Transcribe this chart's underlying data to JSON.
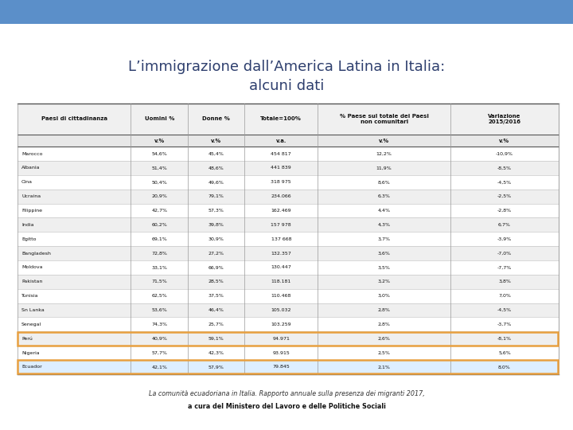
{
  "title_line1": "L’immigrazione dall’America Latina in Italia:",
  "title_line2": "alcuni dati",
  "title_color": "#2e3f6e",
  "col_headers": [
    "Paesi di cittadinanza",
    "Uomini %",
    "Donne %",
    "Totale=100%",
    "% Paese sul totale dei Paesi\nnon comunitari",
    "Variazione\n2015/2016"
  ],
  "col_subheaders": [
    "",
    "v.%",
    "v.%",
    "v.a.",
    "v.%",
    "v.%"
  ],
  "rows": [
    [
      "Marocco",
      "54,6%",
      "45,4%",
      "454 817",
      "12,2%",
      "-10,9%",
      false,
      false
    ],
    [
      "Albania",
      "51,4%",
      "48,6%",
      "441 839",
      "11,9%",
      "-8,5%",
      false,
      false
    ],
    [
      "Cina",
      "50,4%",
      "49,6%",
      "318 975",
      "8,6%",
      "-4,5%",
      false,
      false
    ],
    [
      "Ucraina",
      "20,9%",
      "79,1%",
      "234.066",
      "6,3%",
      "-2,5%",
      false,
      false
    ],
    [
      "Filippine",
      "42,7%",
      "57,3%",
      "162.469",
      "4,4%",
      "-2,8%",
      false,
      false
    ],
    [
      "India",
      "60,2%",
      "39,8%",
      "157 978",
      "4,3%",
      "6,7%",
      false,
      false
    ],
    [
      "Egitto",
      "69,1%",
      "30,9%",
      "137 668",
      "3,7%",
      "-3,9%",
      false,
      false
    ],
    [
      "Bangladesh",
      "72,8%",
      "27,2%",
      "132.357",
      "3,6%",
      "-7,0%",
      false,
      false
    ],
    [
      "Moldova",
      "33,1%",
      "66,9%",
      "130.447",
      "3,5%",
      "-7,7%",
      false,
      false
    ],
    [
      "Pakistan",
      "71,5%",
      "28,5%",
      "118.181",
      "3,2%",
      "3,8%",
      false,
      false
    ],
    [
      "Tunisia",
      "62,5%",
      "37,5%",
      "110.468",
      "3,0%",
      "7,0%",
      false,
      false
    ],
    [
      "Sn Lanka",
      "53,6%",
      "46,4%",
      "105.032",
      "2,8%",
      "-4,5%",
      false,
      false
    ],
    [
      "Senegal",
      "74,3%",
      "25,7%",
      "103.259",
      "2,8%",
      "-3,7%",
      false,
      false
    ],
    [
      "Perú",
      "40,9%",
      "59,1%",
      "94.971",
      "2,6%",
      "-8,1%",
      true,
      false
    ],
    [
      "Nigeria",
      "57,7%",
      "42,3%",
      "93.915",
      "2,5%",
      "5,6%",
      false,
      false
    ],
    [
      "Ecuador",
      "42,1%",
      "57,9%",
      "79.845",
      "2,1%",
      "8,0%",
      false,
      true
    ]
  ],
  "highlight_color": "#e8a040",
  "row_alt_color": "#efefef",
  "row_normal_color": "#ffffff",
  "text_color": "#111111",
  "footer_line1": "La comunità ecuadoriana in Italia. Rapporto annuale sulla presenza dei migranti 2017,",
  "footer_line2": "a cura del Ministero del Lavoro e delle Politiche Sociali",
  "background_color": "#ffffff",
  "top_bar_color": "#5b8fc9"
}
